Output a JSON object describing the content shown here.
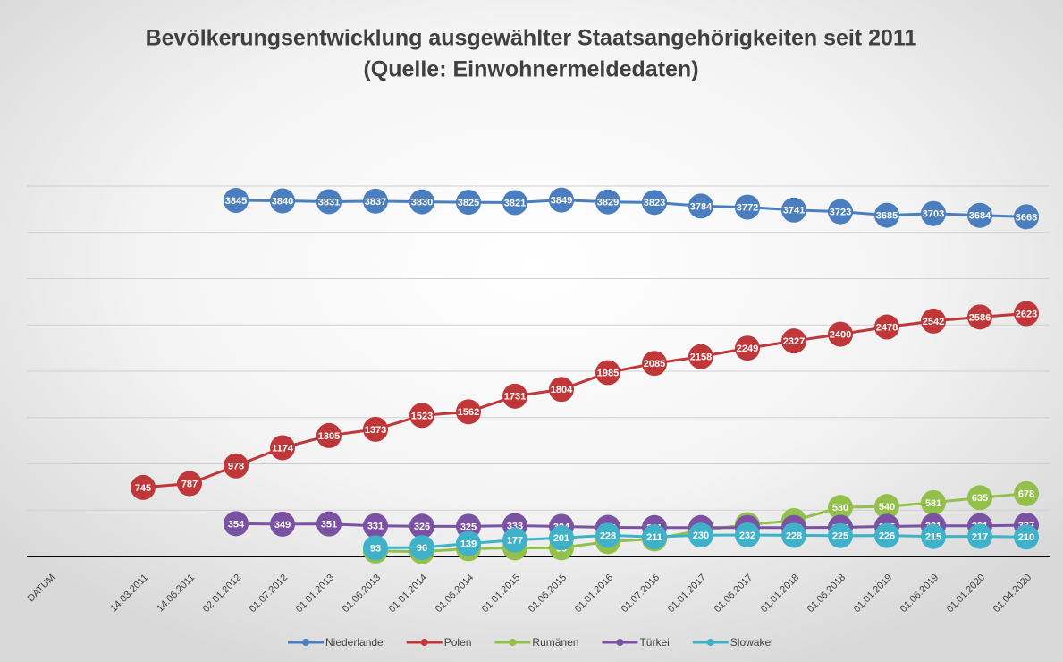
{
  "chart_data": {
    "type": "line",
    "title": "Bevölkerungsentwicklung ausgewählter Staatsangehörigkeiten seit 2011",
    "subtitle": "(Quelle: Einwohnermeldedaten)",
    "categories": [
      "DATUM",
      null,
      "14.03.2011",
      "14.06.2011",
      "02.01.2012",
      "01.07.2012",
      "01.01.2013",
      "01.06.2013",
      "01.01.2014",
      "01.06.2014",
      "01.01.2015",
      "01.06.2015",
      "01.01.2016",
      "01.07.2016",
      "01.01.2017",
      "01.06.2017",
      "01.01.2018",
      "01.06.2018",
      "01.01.2019",
      "01.06.2019",
      "01.01.2020",
      "01.04.2020"
    ],
    "series": [
      {
        "name": "Niederlande",
        "color": "#4a7ebf",
        "values": [
          null,
          null,
          null,
          null,
          3845,
          3840,
          3831,
          3837,
          3830,
          3825,
          3821,
          3849,
          3829,
          3823,
          3784,
          3772,
          3741,
          3723,
          3685,
          3703,
          3684,
          3668
        ]
      },
      {
        "name": "Polen",
        "color": "#c0373a",
        "values": [
          null,
          null,
          745,
          787,
          978,
          1174,
          1305,
          1373,
          1523,
          1562,
          1731,
          1804,
          1985,
          2085,
          2158,
          2249,
          2327,
          2400,
          2478,
          2542,
          2586,
          2623
        ]
      },
      {
        "name": "Rumänen",
        "color": "#92c04a",
        "values": [
          null,
          null,
          null,
          null,
          null,
          null,
          null,
          59,
          52,
          83,
          92,
          93,
          160,
          189,
          281,
          343,
          387,
          530,
          540,
          581,
          635,
          678
        ]
      },
      {
        "name": "Türkei",
        "color": "#7b52a3",
        "values": [
          null,
          null,
          null,
          null,
          354,
          349,
          351,
          331,
          326,
          325,
          333,
          324,
          314,
          311,
          311,
          312,
          312,
          314,
          325,
          331,
          331,
          337
        ]
      },
      {
        "name": "Slowakei",
        "color": "#3fb2c9",
        "values": [
          null,
          null,
          null,
          null,
          null,
          null,
          null,
          93,
          96,
          139,
          177,
          201,
          228,
          211,
          230,
          232,
          228,
          225,
          226,
          215,
          217,
          210
        ]
      }
    ],
    "ylim": [
      0,
      4000
    ],
    "yticks": [
      0,
      500,
      1000,
      1500,
      2000,
      2500,
      3000,
      3500,
      4000
    ],
    "grid": true
  }
}
